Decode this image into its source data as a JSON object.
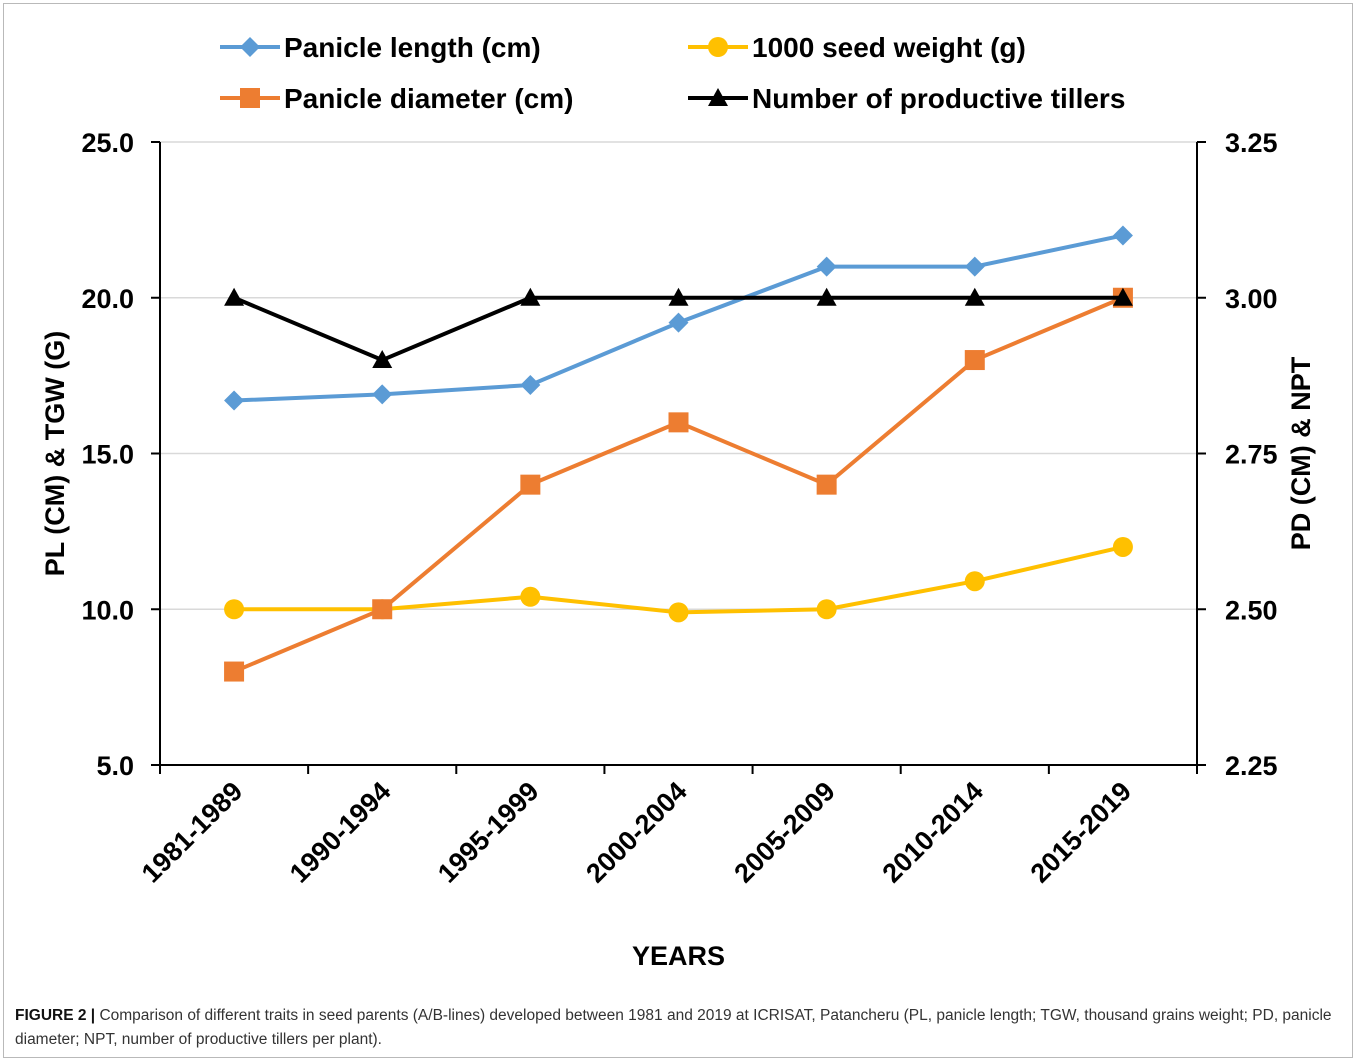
{
  "caption": {
    "label": "FIGURE 2 |",
    "text": " Comparison of different traits in seed parents (A/B-lines) developed between 1981 and 2019 at ICRISAT, Patancheru (PL, panicle length; TGW, thousand grains weight; PD, panicle diameter; NPT, number of productive tillers per plant)."
  },
  "chart_data": {
    "type": "line",
    "categories": [
      "1981-1989",
      "1990-1994",
      "1995-1999",
      "2000-2004",
      "2005-2009",
      "2010-2014",
      "2015-2019"
    ],
    "xlabel": "YEARS",
    "ylabel_left": "PL (CM) & TGW (G)",
    "ylabel_right": "PD (CM) & NPT",
    "ylim_left": [
      5.0,
      25.0
    ],
    "ylim_right": [
      2.25,
      3.25
    ],
    "yticks_left": [
      "5.0",
      "10.0",
      "15.0",
      "20.0",
      "25.0"
    ],
    "yticks_right": [
      "2.25",
      "2.50",
      "2.75",
      "3.00",
      "3.25"
    ],
    "grid": "horizontal",
    "legend_position": "top",
    "series": [
      {
        "name": "Panicle length (cm)",
        "axis": "left",
        "marker": "diamond",
        "color": "#5b9bd5",
        "values": [
          16.7,
          16.9,
          17.2,
          19.2,
          21.0,
          21.0,
          22.0
        ]
      },
      {
        "name": "1000 seed weight (g)",
        "axis": "left",
        "marker": "circle",
        "color": "#ffc000",
        "values": [
          10.0,
          10.0,
          10.4,
          9.9,
          10.0,
          10.9,
          12.0
        ]
      },
      {
        "name": "Panicle diameter (cm)",
        "axis": "right",
        "marker": "square",
        "color": "#ed7d31",
        "values": [
          2.4,
          2.5,
          2.7,
          2.8,
          2.7,
          2.9,
          3.0
        ]
      },
      {
        "name": "Number of productive tillers",
        "axis": "right",
        "marker": "triangle",
        "color": "#000000",
        "values": [
          3.0,
          2.9,
          3.0,
          3.0,
          3.0,
          3.0,
          3.0
        ]
      }
    ]
  }
}
